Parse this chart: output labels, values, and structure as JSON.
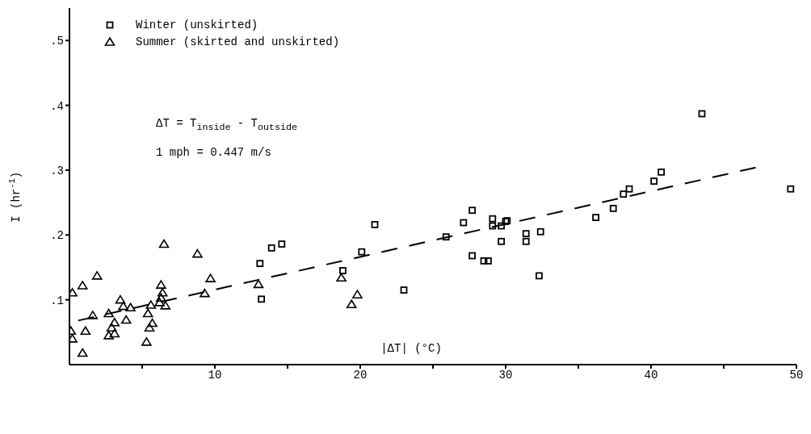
{
  "chart_data": {
    "type": "scatter",
    "xlabel": "|ΔT| (°C)",
    "ylabel": "I (hr$^{-1}$)",
    "xlim": [
      0,
      50
    ],
    "ylim": [
      0,
      0.55
    ],
    "xticks": [
      {
        "value": 5,
        "label": null
      },
      10,
      {
        "value": 15,
        "label": null
      },
      20,
      {
        "value": 25,
        "label": null
      },
      30,
      {
        "value": 35,
        "label": null
      },
      40,
      {
        "value": 45,
        "label": null
      },
      50
    ],
    "yticks": [
      {
        "value": 0.1,
        "label": ".1"
      },
      {
        "value": 0.2,
        "label": ".2"
      },
      {
        "value": 0.3,
        "label": ".3"
      },
      {
        "value": 0.4,
        "label": ".4"
      },
      {
        "value": 0.5,
        "label": ".5"
      }
    ],
    "legend": "top left",
    "annotations": [
      "ΔT = T$_{inside}$ - T$_{outside}$",
      "1 mph = 0.447 m/s"
    ],
    "series": [
      {
        "name": "Winter (unskirted)",
        "color": "#000000",
        "marker": "square",
        "x": [
          13.1,
          13.2,
          13.9,
          14.6,
          21.0,
          20.1,
          18.8,
          23.0,
          25.9,
          27.1,
          27.7,
          27.7,
          28.5,
          28.8,
          29.1,
          29.1,
          29.7,
          30.0,
          30.1,
          29.7,
          31.4,
          31.4,
          32.3,
          32.4,
          36.2,
          37.4,
          38.1,
          38.5,
          40.2,
          40.7,
          43.5,
          49.6
        ],
        "values": [
          0.156,
          0.101,
          0.18,
          0.186,
          0.216,
          0.174,
          0.145,
          0.115,
          0.197,
          0.219,
          0.238,
          0.168,
          0.16,
          0.16,
          0.225,
          0.214,
          0.214,
          0.221,
          0.222,
          0.19,
          0.202,
          0.19,
          0.137,
          0.205,
          0.227,
          0.241,
          0.263,
          0.271,
          0.283,
          0.297,
          0.387,
          0.271
        ]
      },
      {
        "name": "Summer (skirted and unskirted)",
        "color": "#000000",
        "marker": "triangle",
        "x": [
          0.1,
          0.2,
          0.2,
          0.9,
          1.1,
          0.9,
          1.6,
          1.9,
          2.7,
          2.7,
          3.1,
          2.9,
          3.1,
          3.5,
          3.7,
          3.9,
          4.2,
          5.3,
          5.4,
          5.5,
          5.7,
          5.6,
          6.3,
          6.4,
          6.3,
          6.2,
          6.6,
          6.5,
          8.8,
          9.7,
          9.3,
          13.0,
          18.7,
          19.8,
          19.4
        ],
        "values": [
          0.052,
          0.04,
          0.111,
          0.122,
          0.052,
          0.018,
          0.076,
          0.137,
          0.079,
          0.045,
          0.048,
          0.057,
          0.065,
          0.1,
          0.09,
          0.069,
          0.088,
          0.035,
          0.079,
          0.057,
          0.064,
          0.092,
          0.123,
          0.111,
          0.103,
          0.096,
          0.091,
          0.186,
          0.171,
          0.133,
          0.11,
          0.124,
          0.134,
          0.108,
          0.093
        ]
      },
      {
        "type": "line",
        "color": "#000000",
        "marker": "none",
        "line_style": "dashed",
        "x": [
          0.6,
          47.2
        ],
        "values": [
          0.068,
          0.304
        ]
      }
    ]
  }
}
